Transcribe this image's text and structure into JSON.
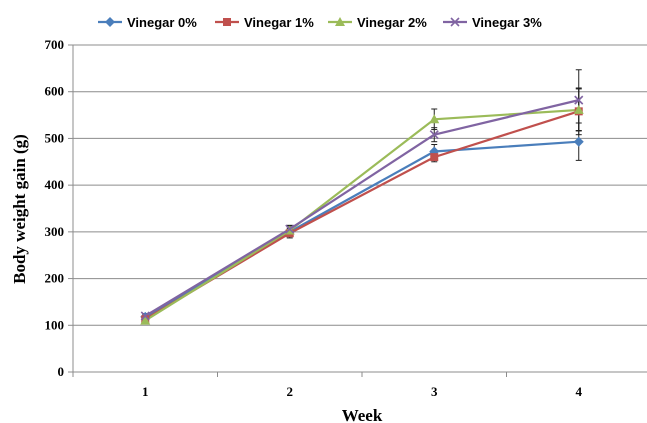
{
  "chart_data": {
    "type": "line",
    "title": "",
    "xlabel": "Week",
    "ylabel": "Body weight gain (g)",
    "categories": [
      "1",
      "2",
      "3",
      "4"
    ],
    "ylim": [
      0,
      700
    ],
    "yticks": [
      0,
      100,
      200,
      300,
      400,
      500,
      600,
      700
    ],
    "grid": "horizontal",
    "legend": "top",
    "series": [
      {
        "name": "Vinegar 0%",
        "color": "#4a7ebb",
        "marker": "diamond",
        "values": [
          118,
          300,
          472,
          493
        ],
        "error": [
          5,
          10,
          15,
          40
        ]
      },
      {
        "name": "Vinegar 1%",
        "color": "#c0504d",
        "marker": "square",
        "values": [
          113,
          297,
          460,
          558
        ],
        "error": [
          5,
          10,
          10,
          50
        ]
      },
      {
        "name": "Vinegar 2%",
        "color": "#9bbb59",
        "marker": "triangle",
        "values": [
          110,
          303,
          541,
          561
        ],
        "error": [
          5,
          10,
          22,
          45
        ]
      },
      {
        "name": "Vinegar 3%",
        "color": "#8064a2",
        "marker": "x",
        "values": [
          120,
          306,
          508,
          582
        ],
        "error": [
          5,
          8,
          15,
          65
        ]
      }
    ]
  }
}
